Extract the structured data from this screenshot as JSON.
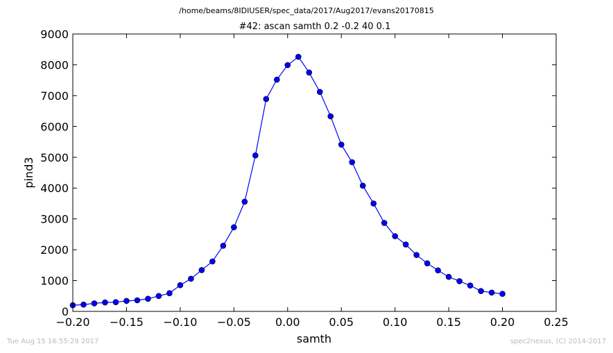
{
  "header": {
    "path": "/home/beams/8IDIUSER/spec_data/2017/Aug2017/evans20170815"
  },
  "footer": {
    "timestamp": "Tue Aug 15 16:55:29 2017",
    "credit": "spec2nexus, (C) 2014-2017"
  },
  "chart_data": {
    "type": "line",
    "title": "#42: ascan  samth 0.2 -0.2  40 0.1",
    "xlabel": "samth",
    "ylabel": "pind3",
    "xlim": [
      -0.2,
      0.25
    ],
    "ylim": [
      0,
      9000
    ],
    "xticks": [
      -0.2,
      -0.15,
      -0.1,
      -0.05,
      0.0,
      0.05,
      0.1,
      0.15,
      0.2,
      0.25
    ],
    "xtick_labels": [
      "−0.20",
      "−0.15",
      "−0.10",
      "−0.05",
      "0.00",
      "0.05",
      "0.10",
      "0.15",
      "0.20",
      "0.25"
    ],
    "yticks": [
      0,
      1000,
      2000,
      3000,
      4000,
      5000,
      6000,
      7000,
      8000,
      9000
    ],
    "ytick_labels": [
      "0",
      "1000",
      "2000",
      "3000",
      "4000",
      "5000",
      "6000",
      "7000",
      "8000",
      "9000"
    ],
    "grid": false,
    "color": "#0000ff",
    "marker": "circle",
    "x": [
      -0.2,
      -0.19,
      -0.18,
      -0.17,
      -0.16,
      -0.15,
      -0.14,
      -0.13,
      -0.12,
      -0.11,
      -0.1,
      -0.09,
      -0.08,
      -0.07,
      -0.06,
      -0.05,
      -0.04,
      -0.03,
      -0.02,
      -0.01,
      0.0,
      0.01,
      0.02,
      0.03,
      0.04,
      0.05,
      0.06,
      0.07,
      0.08,
      0.09,
      0.1,
      0.11,
      0.12,
      0.13,
      0.14,
      0.15,
      0.16,
      0.17,
      0.18,
      0.19,
      0.2
    ],
    "y": [
      200,
      220,
      260,
      290,
      300,
      340,
      360,
      410,
      500,
      590,
      850,
      1060,
      1340,
      1620,
      2130,
      2730,
      3560,
      5060,
      6890,
      7520,
      7990,
      8260,
      7750,
      7120,
      6330,
      5410,
      4840,
      4080,
      3500,
      2870,
      2440,
      2170,
      1830,
      1560,
      1330,
      1120,
      980,
      840,
      660,
      610,
      570
    ]
  }
}
